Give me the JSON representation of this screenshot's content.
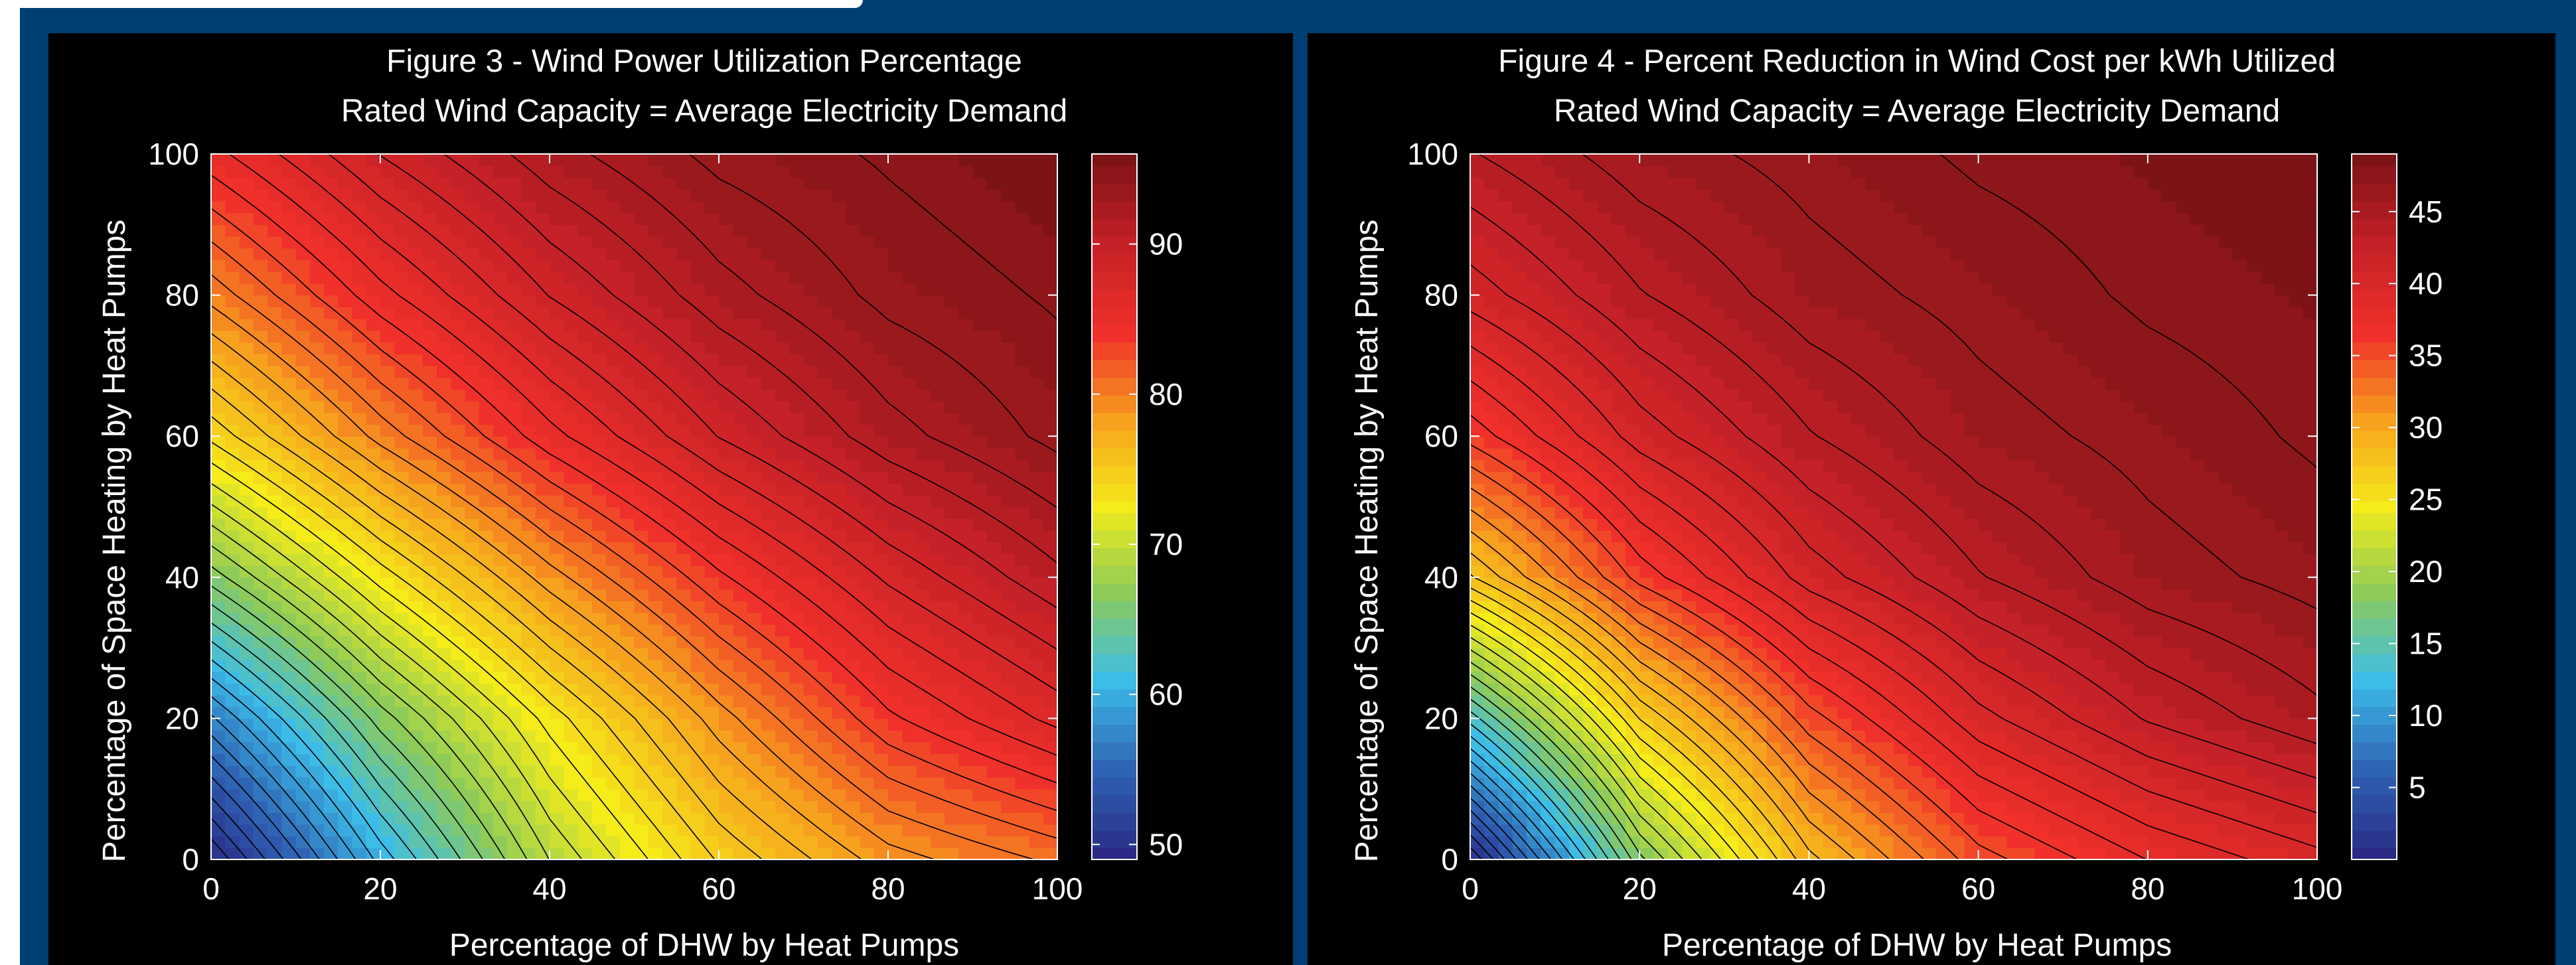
{
  "chart_data": [
    {
      "type": "heatmap",
      "subtype": "filled-contour",
      "title": "Figure 3 - Wind Power Utilization Percentage",
      "subtitle": "Rated Wind Capacity = Average Electricity Demand",
      "xlabel": "Percentage of DHW by Heat Pumps",
      "ylabel": "Percentage of Space Heating by Heat Pumps",
      "xlim": [
        0,
        100
      ],
      "ylim": [
        0,
        100
      ],
      "xticks": [
        0,
        20,
        40,
        60,
        80,
        100
      ],
      "yticks": [
        0,
        20,
        40,
        60,
        80,
        100
      ],
      "x": [
        0,
        20,
        40,
        60,
        80,
        100
      ],
      "y": [
        0,
        20,
        40,
        60,
        80,
        100
      ],
      "z": [
        [
          49,
          60,
          69,
          75,
          79,
          81
        ],
        [
          57,
          66,
          73,
          79,
          84,
          87
        ],
        [
          66,
          73,
          79,
          84,
          88,
          91
        ],
        [
          74,
          80,
          85,
          89,
          92,
          94
        ],
        [
          80,
          85,
          89,
          92,
          94,
          95
        ],
        [
          85,
          89,
          92,
          94,
          95,
          96
        ]
      ],
      "colorbar": {
        "ticks": [
          50,
          60,
          70,
          80,
          90
        ],
        "range": [
          49,
          96
        ]
      },
      "colormap": [
        "#2a2a86",
        "#2f64b4",
        "#3cbde8",
        "#8ecb58",
        "#f5ec1a",
        "#f7a21e",
        "#f0302a",
        "#c52128",
        "#7e1316"
      ],
      "contour_color": "#000000",
      "grid": false,
      "legend": "colorbar-right"
    },
    {
      "type": "heatmap",
      "subtype": "filled-contour",
      "title": "Figure 4 - Percent Reduction in Wind Cost per kWh Utilized",
      "subtitle": "Rated Wind Capacity = Average Electricity Demand",
      "xlabel": "Percentage of DHW by Heat Pumps",
      "ylabel": "Percentage of Space Heating by Heat Pumps",
      "xlim": [
        0,
        100
      ],
      "ylim": [
        0,
        100
      ],
      "xticks": [
        0,
        20,
        40,
        60,
        80,
        100
      ],
      "yticks": [
        0,
        20,
        40,
        60,
        80,
        100
      ],
      "x": [
        0,
        20,
        40,
        60,
        80,
        100
      ],
      "y": [
        0,
        20,
        40,
        60,
        80,
        100
      ],
      "z": [
        [
          0,
          18,
          29,
          35,
          38,
          40
        ],
        [
          14,
          27,
          35,
          40,
          43,
          45
        ],
        [
          28,
          36,
          41,
          44,
          46,
          47
        ],
        [
          36,
          41,
          44,
          46,
          47,
          48
        ],
        [
          41,
          44,
          46,
          47,
          48,
          48.5
        ],
        [
          44,
          46,
          47,
          48,
          48.5,
          49
        ]
      ],
      "colorbar": {
        "ticks": [
          5,
          10,
          15,
          20,
          25,
          30,
          35,
          40,
          45
        ],
        "range": [
          0,
          49
        ]
      },
      "colormap": [
        "#2a2a86",
        "#2f64b4",
        "#3cbde8",
        "#8ecb58",
        "#f5ec1a",
        "#f7a21e",
        "#f0302a",
        "#c52128",
        "#7e1316"
      ],
      "contour_color": "#000000",
      "grid": false,
      "legend": "colorbar-right"
    }
  ]
}
